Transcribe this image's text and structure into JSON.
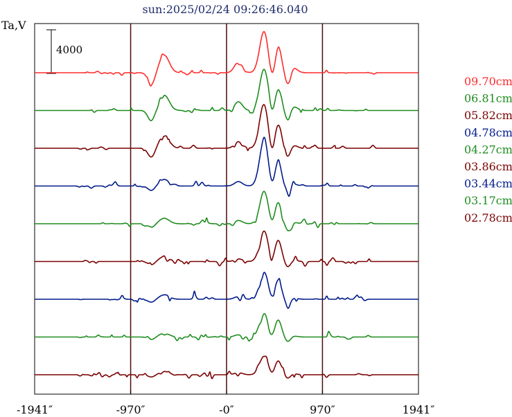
{
  "chart_data": {
    "type": "line",
    "title": "sun:2025/02/24 09:26:46.040",
    "ylabel": "Ta,V",
    "xlabel": "",
    "xlim": [
      -1941,
      1941
    ],
    "x_ticks": [
      -1941,
      -970,
      0,
      970,
      1941
    ],
    "x_tick_labels": [
      "-1941″",
      "-970″",
      "-0″",
      "970″",
      "1941″"
    ],
    "vertical_lines": [
      -970,
      0,
      970
    ],
    "grid": false,
    "legend_position": "right",
    "scale_bar": {
      "label": "4000",
      "value": 4000
    },
    "series": [
      {
        "name": "09.70cm",
        "color": "#ff2a2a",
        "offset": 8,
        "a": 3800,
        "b": 2400,
        "c": -1400,
        "d": 1600,
        "e": 1000,
        "noise": 250
      },
      {
        "name": "06.81cm",
        "color": "#1e8c1e",
        "offset": 7,
        "a": 3800,
        "b": 2000,
        "c": -1100,
        "d": 1400,
        "e": 800,
        "noise": 300
      },
      {
        "name": "05.82cm",
        "color": "#7a0000",
        "offset": 6,
        "a": 4000,
        "b": 2200,
        "c": -1000,
        "d": 1200,
        "e": 600,
        "noise": 300
      },
      {
        "name": "04.78cm",
        "color": "#001a8a",
        "offset": 5,
        "a": 4200,
        "b": 2300,
        "c": -900,
        "d": 600,
        "e": 400,
        "noise": 350
      },
      {
        "name": "04.27cm",
        "color": "#1e8c1e",
        "offset": 4,
        "a": 3000,
        "b": 2000,
        "c": -700,
        "d": 500,
        "e": 300,
        "noise": 350
      },
      {
        "name": "03.86cm",
        "color": "#7a0000",
        "offset": 3,
        "a": 2800,
        "b": 2000,
        "c": -600,
        "d": 450,
        "e": 250,
        "noise": 400
      },
      {
        "name": "03.44cm",
        "color": "#001a8a",
        "offset": 2,
        "a": 2500,
        "b": 1800,
        "c": -600,
        "d": 400,
        "e": 250,
        "noise": 400
      },
      {
        "name": "03.17cm",
        "color": "#1e8c1e",
        "offset": 1,
        "a": 2200,
        "b": 1600,
        "c": -500,
        "d": 350,
        "e": 200,
        "noise": 400
      },
      {
        "name": "02.78cm",
        "color": "#7a0000",
        "offset": 0,
        "a": 1700,
        "b": 1300,
        "c": -400,
        "d": 300,
        "e": 200,
        "noise": 350
      }
    ]
  }
}
